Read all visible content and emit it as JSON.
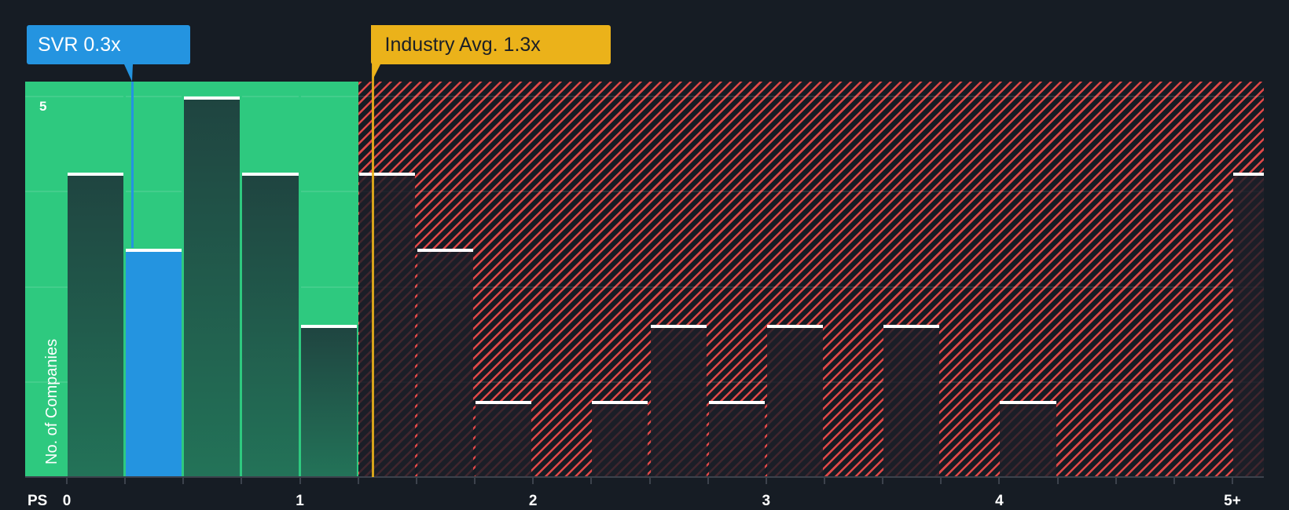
{
  "chart_data": {
    "type": "bar",
    "title": "",
    "xlabel": "PS",
    "ylabel": "No. of Companies",
    "x_tick_labels": [
      "0",
      "1",
      "2",
      "3",
      "4",
      "5+"
    ],
    "y_tick_labels": [
      "5"
    ],
    "bin_width": 0.25,
    "categories": [
      "0-0.25",
      "0.25-0.5",
      "0.5-0.75",
      "0.75-1",
      "1-1.25",
      "1.25-1.5",
      "1.5-1.75",
      "1.75-2",
      "2-2.25",
      "2.25-2.5",
      "2.5-2.75",
      "2.75-3",
      "3-3.25",
      "3.25-3.5",
      "3.5-3.75",
      "3.75-4",
      "4-4.25",
      "4.25-4.5",
      "4.5-4.75",
      "4.75-5",
      "5+"
    ],
    "values": [
      4,
      3,
      5,
      4,
      2,
      4,
      3,
      1,
      0,
      1,
      2,
      1,
      2,
      0,
      2,
      0,
      1,
      0,
      0,
      0,
      4
    ],
    "highlight_bin_index": 1,
    "ylim": [
      0,
      5.2
    ],
    "grid": true,
    "annotations": [
      {
        "label": "SVR 0.3x",
        "x": 0.28,
        "color": "#2494e0"
      },
      {
        "label": "Industry Avg. 1.3x",
        "x": 1.31,
        "color": "#ebb21a"
      }
    ],
    "zones": [
      {
        "name": "undervalued",
        "from": 0,
        "to": 1.25,
        "color": "#2ec97f"
      },
      {
        "name": "overvalued",
        "from": 1.25,
        "to": 5.25,
        "color": "#e04848",
        "pattern": "diagonal-hatch"
      }
    ]
  },
  "callouts": {
    "company": "SVR 0.3x",
    "industry": "Industry Avg. 1.3x"
  },
  "axis": {
    "x_title": "PS",
    "y_title": "No. of Companies",
    "y_top_tick": "5"
  },
  "colors": {
    "background": "#161c24",
    "green_zone": "#2ec97f",
    "red_hatch": "#e04848",
    "company_bar": "#2494e0",
    "industry_marker": "#ebb21a",
    "bar_cap": "#ffffff"
  }
}
